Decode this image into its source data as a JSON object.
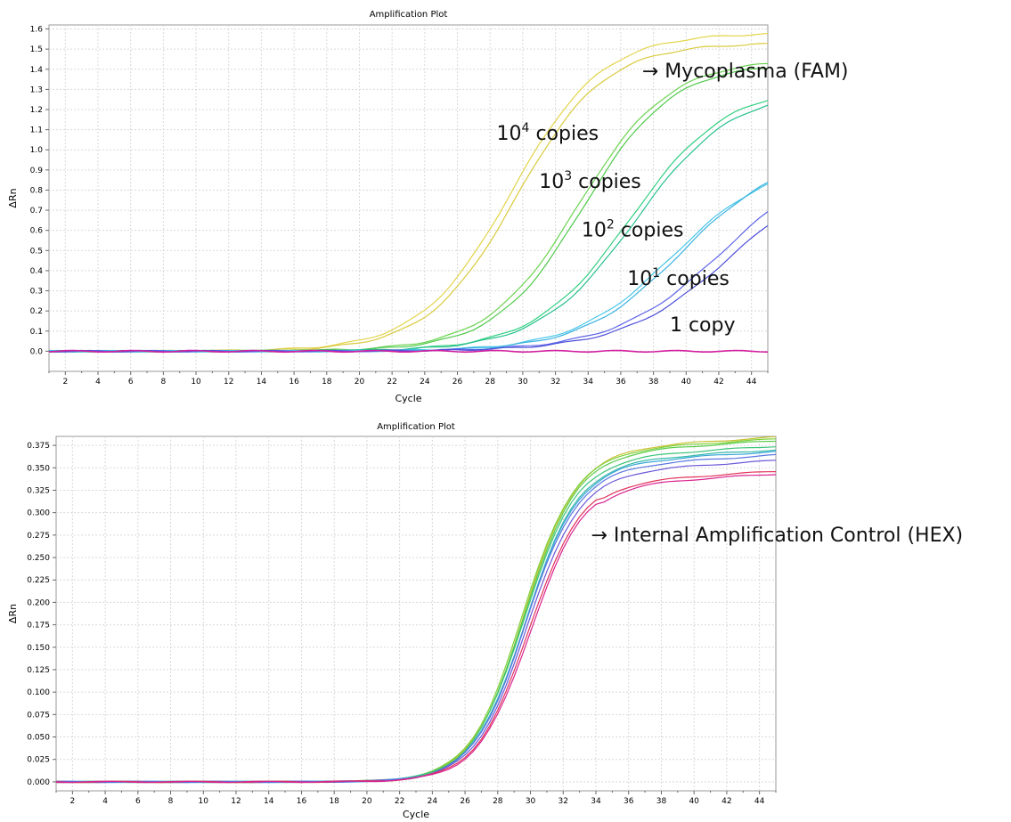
{
  "chart_data": [
    {
      "type": "line",
      "title": "Amplification Plot",
      "xlabel": "Cycle",
      "ylabel": "ΔRn",
      "xlim": [
        1,
        45
      ],
      "ylim": [
        -0.1,
        1.62
      ],
      "xticks": [
        "2",
        "4",
        "6",
        "8",
        "10",
        "12",
        "14",
        "16",
        "18",
        "20",
        "22",
        "24",
        "26",
        "28",
        "30",
        "32",
        "34",
        "36",
        "38",
        "40",
        "42",
        "44"
      ],
      "yticks": [
        "0.0",
        "0.1",
        "0.2",
        "0.3",
        "0.4",
        "0.5",
        "0.6",
        "0.7",
        "0.8",
        "0.9",
        "1.0",
        "1.1",
        "1.2",
        "1.3",
        "1.4",
        "1.5",
        "1.6"
      ],
      "grid": true,
      "series": [
        {
          "color": "#e3d44a",
          "ct": 29.3,
          "plateau": 1.58,
          "k": 0.36
        },
        {
          "color": "#d9ca3e",
          "ct": 29.6,
          "plateau": 1.53,
          "k": 0.37
        },
        {
          "color": "#6ad34f",
          "ct": 33.4,
          "plateau": 1.45,
          "k": 0.36
        },
        {
          "color": "#4fc94a",
          "ct": 33.7,
          "plateau": 1.43,
          "k": 0.37
        },
        {
          "color": "#2fcf7f",
          "ct": 36.6,
          "plateau": 1.32,
          "k": 0.34
        },
        {
          "color": "#27c08d",
          "ct": 36.9,
          "plateau": 1.3,
          "k": 0.34
        },
        {
          "color": "#48c6e8",
          "ct": 39.2,
          "plateau": 0.95,
          "k": 0.33
        },
        {
          "color": "#39b2e0",
          "ct": 39.7,
          "plateau": 0.98,
          "k": 0.33
        },
        {
          "color": "#5b62e8",
          "ct": 42.3,
          "plateau": 1.0,
          "k": 0.3
        },
        {
          "color": "#4d4fd9",
          "ct": 42.8,
          "plateau": 0.95,
          "k": 0.3
        },
        {
          "color": "#d21fa0",
          "ct": 0,
          "plateau": 0,
          "k": 0
        }
      ],
      "annotations": [
        {
          "text": "→ Mycoplasma (FAM)",
          "at": [
            37.3,
            1.36
          ]
        },
        {
          "text": "10",
          "sup": "4",
          "rest": " copies",
          "at": [
            28.4,
            1.05
          ]
        },
        {
          "text": "10",
          "sup": "3",
          "rest": " copies",
          "at": [
            31.0,
            0.81
          ]
        },
        {
          "text": "10",
          "sup": "2",
          "rest": " copies",
          "at": [
            33.6,
            0.57
          ]
        },
        {
          "text": "10",
          "sup": "1",
          "rest": " copies",
          "at": [
            36.4,
            0.33
          ]
        },
        {
          "text": "1 copy",
          "sup": "",
          "rest": "",
          "at": [
            39.0,
            0.1
          ]
        }
      ]
    },
    {
      "type": "line",
      "title": "Amplification Plot",
      "xlabel": "Cycle",
      "ylabel": "ΔRn",
      "xlim": [
        1,
        45
      ],
      "ylim": [
        -0.01,
        0.385
      ],
      "xticks": [
        "2",
        "4",
        "6",
        "8",
        "10",
        "12",
        "14",
        "16",
        "18",
        "20",
        "22",
        "24",
        "26",
        "28",
        "30",
        "32",
        "34",
        "36",
        "38",
        "40",
        "42",
        "44"
      ],
      "yticks": [
        "0.000",
        "0.025",
        "0.050",
        "0.075",
        "0.100",
        "0.125",
        "0.150",
        "0.175",
        "0.200",
        "0.225",
        "0.250",
        "0.275",
        "0.300",
        "0.325",
        "0.350",
        "0.375"
      ],
      "grid": true,
      "series": [
        {
          "color": "#c9c035",
          "plateau": 0.372,
          "ct": 29.6
        },
        {
          "color": "#7fd13a",
          "plateau": 0.37,
          "ct": 29.5
        },
        {
          "color": "#5ccc4a",
          "plateau": 0.368,
          "ct": 29.6
        },
        {
          "color": "#3cc47a",
          "plateau": 0.362,
          "ct": 29.6
        },
        {
          "color": "#36b9a8",
          "plateau": 0.358,
          "ct": 29.7
        },
        {
          "color": "#3aa7d8",
          "plateau": 0.356,
          "ct": 29.7
        },
        {
          "color": "#5a78e0",
          "plateau": 0.352,
          "ct": 29.7
        },
        {
          "color": "#6a58d8",
          "plateau": 0.346,
          "ct": 29.8
        },
        {
          "color": "#e2325a",
          "plateau": 0.338,
          "ct": 29.9
        },
        {
          "color": "#d9238f",
          "plateau": 0.335,
          "ct": 30.0
        }
      ],
      "annotations": [
        {
          "text": "→ Internal Amplification Control (HEX)",
          "at": [
            33.7,
            0.268
          ]
        }
      ]
    }
  ]
}
